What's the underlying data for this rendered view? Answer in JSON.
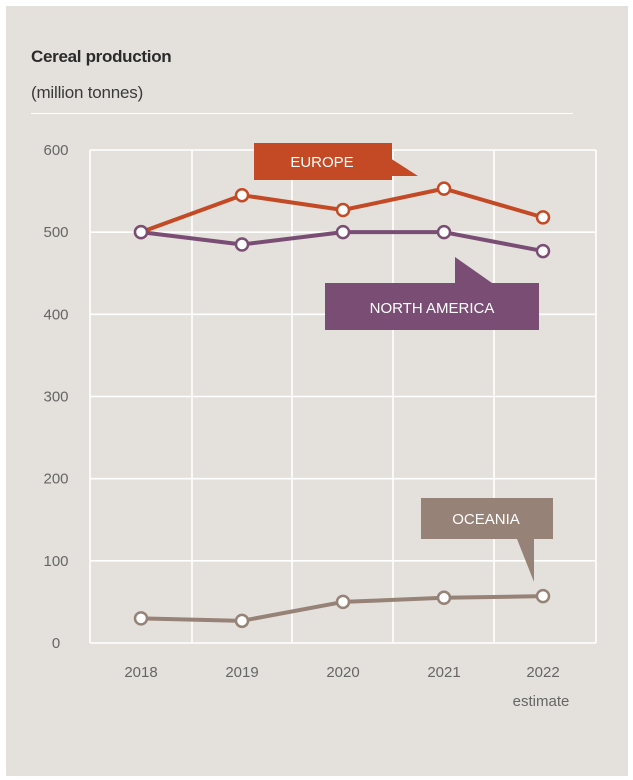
{
  "chart_data": {
    "type": "line",
    "title": "Cereal production",
    "subtitle": "(million tonnes)",
    "x": [
      "2018",
      "2019",
      "2020",
      "2021",
      "2022"
    ],
    "x_note": "estimate",
    "ylim": [
      0,
      600
    ],
    "yticks": [
      0,
      100,
      200,
      300,
      400,
      500,
      600
    ],
    "grid": true,
    "series": [
      {
        "name": "EUROPE",
        "color": "#c34a25",
        "values": [
          500,
          545,
          527,
          553,
          518
        ]
      },
      {
        "name": "NORTH AMERICA",
        "color": "#7a4e74",
        "values": [
          500,
          485,
          500,
          500,
          477
        ]
      },
      {
        "name": "OCEANIA",
        "color": "#968276",
        "values": [
          30,
          27,
          50,
          55,
          57
        ]
      }
    ]
  }
}
